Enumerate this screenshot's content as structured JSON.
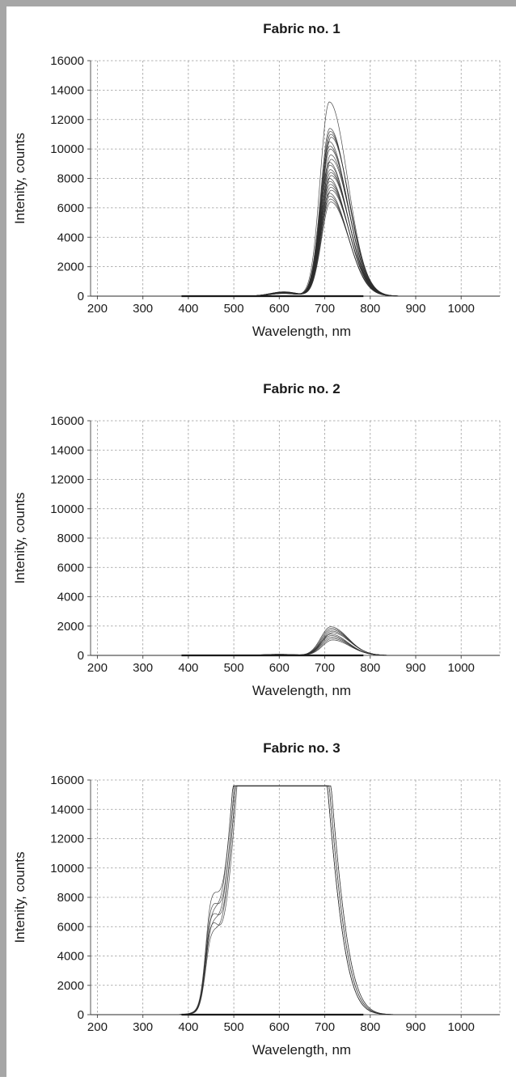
{
  "chart_data": [
    {
      "type": "line",
      "title": "Fabric no. 1",
      "xlabel": "Wavelength, nm",
      "ylabel": "Intenity, counts",
      "xlim": [
        185,
        1085
      ],
      "ylim": [
        0,
        16000
      ],
      "xticks": [
        200,
        300,
        400,
        500,
        600,
        700,
        800,
        900,
        1000
      ],
      "yticks": [
        0,
        2000,
        4000,
        6000,
        8000,
        10000,
        12000,
        14000,
        16000
      ],
      "grid": true,
      "x_range": [
        385,
        785
      ],
      "peaks": [
        {
          "center": 712,
          "heights": [
            13200,
            11400,
            11200,
            11000,
            10800,
            10500,
            10200,
            10000,
            9600,
            9300,
            9100,
            8900,
            8600,
            8400,
            8200,
            8000,
            7800,
            7600,
            7400,
            7200,
            7000,
            6800,
            6600,
            6400
          ],
          "width_left": 20,
          "width_right": 40,
          "lower": 650,
          "upper": 1085
        }
      ],
      "minor_bump": {
        "center": 610,
        "height": 300,
        "width": 30
      }
    },
    {
      "type": "line",
      "title": "Fabric no. 2",
      "xlabel": "Wavelength, nm",
      "ylabel": "Intenity, counts",
      "xlim": [
        185,
        1085
      ],
      "ylim": [
        0,
        16000
      ],
      "xticks": [
        200,
        300,
        400,
        500,
        600,
        700,
        800,
        900,
        1000
      ],
      "yticks": [
        0,
        2000,
        4000,
        6000,
        8000,
        10000,
        12000,
        14000,
        16000
      ],
      "grid": true,
      "x_range": [
        385,
        785
      ],
      "peaks": [
        {
          "center": 715,
          "heights": [
            1950,
            1850,
            1750,
            1650,
            1550,
            1450,
            1350,
            1250,
            1150,
            1050
          ],
          "width_left": 22,
          "width_right": 38,
          "lower": 640,
          "upper": 1085
        }
      ],
      "minor_bump": {
        "center": 600,
        "height": 80,
        "width": 35
      }
    },
    {
      "type": "line",
      "title": "Fabric no. 3",
      "xlabel": "Wavelength, nm",
      "ylabel": "Intenity, counts",
      "xlim": [
        185,
        1085
      ],
      "ylim": [
        0,
        16000
      ],
      "xticks": [
        200,
        300,
        400,
        500,
        600,
        700,
        800,
        900,
        1000
      ],
      "yticks": [
        0,
        2000,
        4000,
        6000,
        8000,
        10000,
        12000,
        14000,
        16000
      ],
      "grid": true,
      "x_range": [
        385,
        785
      ],
      "saturation": 15600,
      "narrow_peak": {
        "center": 450,
        "heights": [
          5600,
          5300,
          5000,
          4700,
          4400,
          4100,
          3800
        ],
        "width": 15
      },
      "broad_band": {
        "left_edge": 550,
        "right_edge": 655,
        "left_width": 42,
        "right_width": 48,
        "height": 30000
      }
    }
  ]
}
